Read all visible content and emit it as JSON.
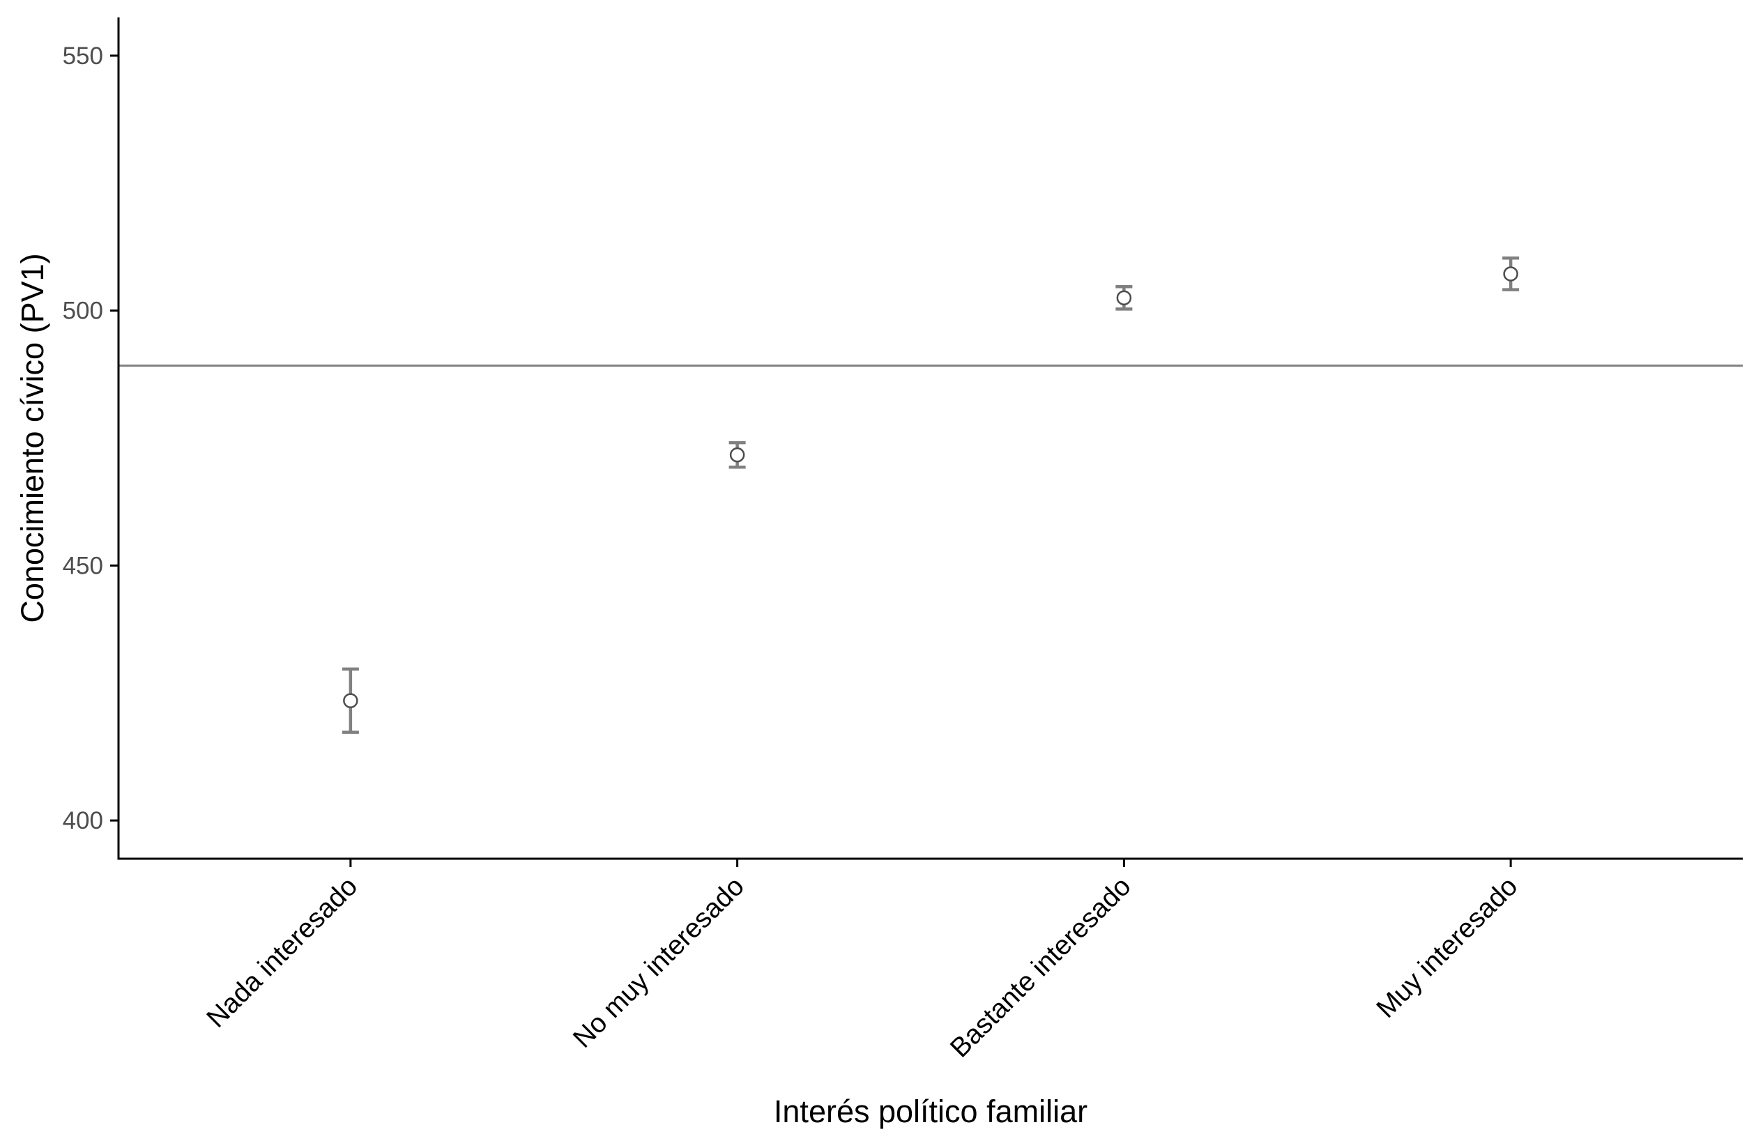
{
  "chart_data": {
    "type": "scatter",
    "subtype": "point-with-errorbars",
    "title": "",
    "xlabel": "Interés político familiar",
    "ylabel": "Conocimiento cívico (PV1)",
    "categories": [
      "Nada interesado",
      "No muy interesado",
      "Bastante interesado",
      "Muy interesado"
    ],
    "series": [
      {
        "values": [
          423.5,
          471.7,
          502.5,
          507.2
        ],
        "lower": [
          417.3,
          469.3,
          500.3,
          504.1
        ],
        "upper": [
          429.7,
          474.1,
          504.7,
          510.3
        ]
      }
    ],
    "reference_line": {
      "y": 489.2,
      "color": "#7f7f7f"
    },
    "yticks": [
      400,
      450,
      500,
      550
    ],
    "ylim": [
      392.5,
      557.5
    ],
    "grid": false,
    "legend": "none",
    "colors": {
      "errorbar": "#808080",
      "point_stroke": "#4d4d4d",
      "point_fill": "#ffffff",
      "axis": "#000000"
    }
  }
}
